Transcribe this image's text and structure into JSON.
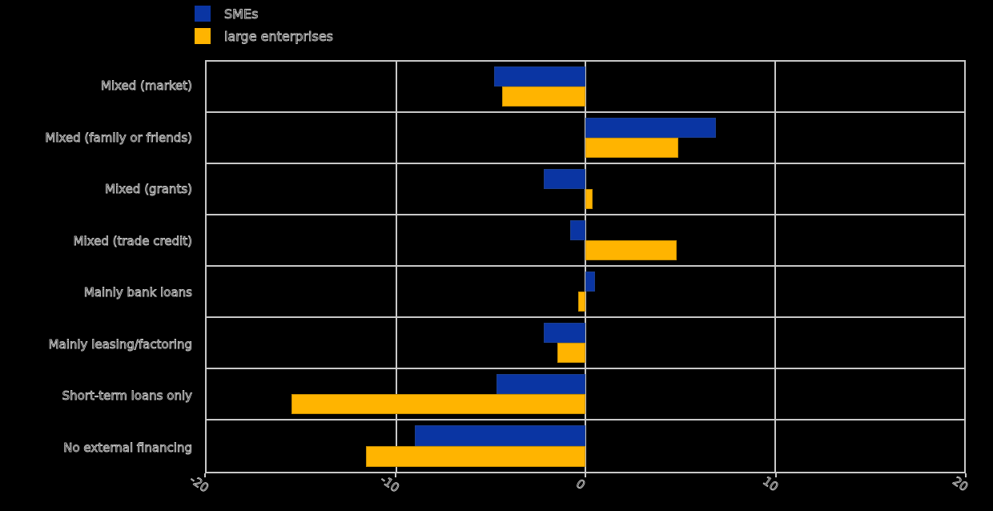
{
  "chart_data": {
    "type": "bar",
    "orientation": "horizontal",
    "title": "",
    "xlabel": "",
    "ylabel": "",
    "categories": [
      "Mixed (market)",
      "Mixed (family or friends)",
      "Mixed (grants)",
      "Mixed (trade credit)",
      "Mainly bank loans",
      "Mainly leasing/factoring",
      "Short-term loans only",
      "No external financing"
    ],
    "series": [
      {
        "name": "SMEs",
        "color": "#0A35A3",
        "edge_color": "#1b3f8f",
        "values": [
          -4.8,
          6.9,
          -2.2,
          -0.8,
          0.5,
          -2.2,
          -4.7,
          -9.0
        ]
      },
      {
        "name": "large enterprises",
        "color": "#FFB400",
        "edge_color": "#c98f00",
        "values": [
          -4.4,
          4.9,
          0.4,
          4.8,
          -0.4,
          -1.5,
          -15.5,
          -11.6
        ]
      }
    ],
    "xlim": [
      -20,
      20
    ],
    "xticks": [
      -20,
      -10,
      0,
      10,
      20
    ],
    "xtick_labels": [
      "-20",
      "-10",
      "0",
      "10",
      "20"
    ],
    "grid": "vertical",
    "legend_position": "top-left",
    "background_color": "#000000",
    "gridline_color": "#C9C9C9",
    "text_color": "#C9C9C9"
  }
}
